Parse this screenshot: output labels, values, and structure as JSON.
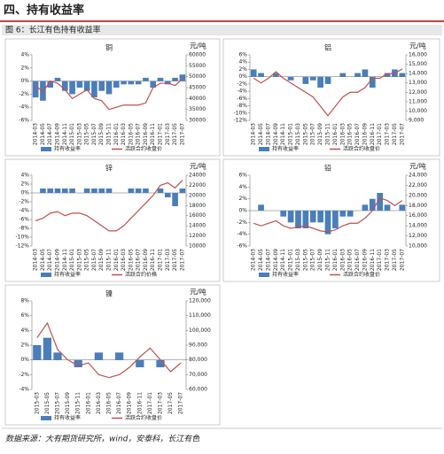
{
  "header": {
    "title": "四、持有收益率",
    "caption": "图 6：长江有色持有收益率",
    "source": "数据来源：大有期货研究所，wind，安泰科，长江有色"
  },
  "chart_data": [
    {
      "type": "combo",
      "title": "铜",
      "y2_label": "元/吨",
      "categories": [
        "2014-03",
        "2014-05",
        "2014-07",
        "2014-09",
        "2014-11",
        "2015-01",
        "2015-03",
        "2015-05",
        "2015-07",
        "2015-09",
        "2015-11",
        "2016-01",
        "2016-03",
        "2016-05",
        "2016-07",
        "2016-09",
        "2016-11",
        "2017-01",
        "2017-03",
        "2017-05",
        "2017-07"
      ],
      "series": [
        {
          "name": "持有收益率",
          "color": "#4a7ebb",
          "kind": "bar",
          "values": [
            -2.5,
            -3,
            -1,
            0.5,
            -1.5,
            -2,
            -1,
            -1.5,
            -2.5,
            -1.5,
            -2,
            -1,
            -0.5,
            -0.5,
            -0.5,
            0.5,
            -1,
            0.5,
            -0.5,
            0.5,
            1
          ]
        },
        {
          "name": "活跃合约收盘价",
          "color": "#c0504d",
          "kind": "line",
          "axis": "y2",
          "values": [
            46000,
            43000,
            48000,
            47000,
            44000,
            40000,
            42000,
            44000,
            40000,
            39000,
            35000,
            36000,
            37000,
            37000,
            37000,
            38000,
            45000,
            47000,
            47000,
            46000,
            49000
          ]
        }
      ],
      "ylim": [
        -6,
        4
      ],
      "yticks": [
        {
          "value": 4,
          "label": "4%"
        },
        {
          "value": 2,
          "label": "2%"
        },
        {
          "value": 0,
          "label": "0%"
        },
        {
          "value": -2,
          "label": "-2%"
        },
        {
          "value": -4,
          "label": "-4%"
        },
        {
          "value": -6,
          "label": "-6%"
        }
      ],
      "y2lim": [
        30000,
        60000
      ],
      "y2ticks": [
        60000,
        55000,
        50000,
        45000,
        40000,
        35000,
        30000
      ]
    },
    {
      "type": "combo",
      "title": "铝",
      "y2_label": "元/吨",
      "categories": [
        "2014-03",
        "2014-05",
        "2014-07",
        "2014-09",
        "2014-11",
        "2015-01",
        "2015-03",
        "2015-05",
        "2015-07",
        "2015-09",
        "2015-11",
        "2016-01",
        "2016-03",
        "2016-05",
        "2016-07",
        "2016-09",
        "2016-11",
        "2017-01",
        "2017-03",
        "2017-05",
        "2017-07"
      ],
      "series": [
        {
          "name": "持有收益率",
          "color": "#4a7ebb",
          "kind": "bar",
          "values": [
            2,
            1,
            0,
            1,
            0,
            -1,
            0,
            -2,
            -1,
            -3,
            -2,
            0,
            1,
            0,
            1,
            2,
            -3,
            0,
            1,
            2,
            1
          ]
        },
        {
          "name": "活跃合约收盘价",
          "color": "#c0504d",
          "kind": "line",
          "axis": "y2",
          "values": [
            13500,
            13000,
            13500,
            14200,
            13500,
            13000,
            12500,
            12000,
            11500,
            10500,
            9500,
            10500,
            11500,
            12000,
            12000,
            12500,
            13500,
            13500,
            14000,
            14000,
            14500
          ]
        }
      ],
      "ylim": [
        -12,
        6
      ],
      "yticks": [
        {
          "value": 6,
          "label": "6%"
        },
        {
          "value": 4,
          "label": "4%"
        },
        {
          "value": 2,
          "label": "2%"
        },
        {
          "value": 0,
          "label": "0%"
        },
        {
          "value": -2,
          "label": "-2%"
        },
        {
          "value": -4,
          "label": "-4%"
        },
        {
          "value": -6,
          "label": "-6%"
        },
        {
          "value": -8,
          "label": "-8%"
        },
        {
          "value": -10,
          "label": "-10%"
        },
        {
          "value": -12,
          "label": "-12%"
        }
      ],
      "y2lim": [
        9000,
        16000
      ],
      "y2ticks": [
        {
          "value": 16000,
          "label": "16,000"
        },
        {
          "value": 15000,
          "label": "15,000"
        },
        {
          "value": 14000,
          "label": "14,000"
        },
        {
          "value": 13000,
          "label": "13,000"
        },
        {
          "value": 12000,
          "label": "12,000"
        },
        {
          "value": 11000,
          "label": "11,000"
        },
        {
          "value": 10000,
          "label": "10,000"
        },
        {
          "value": 9000,
          "label": "9,000"
        }
      ]
    },
    {
      "type": "combo",
      "title": "锌",
      "y2_label": "元/吨",
      "categories": [
        "2014-03",
        "2014-05",
        "2014-07",
        "2014-09",
        "2014-11",
        "2015-01",
        "2015-03",
        "2015-05",
        "2015-07",
        "2015-09",
        "2015-11",
        "2016-01",
        "2016-03",
        "2016-05",
        "2016-07",
        "2016-09",
        "2016-11",
        "2017-01",
        "2017-03",
        "2017-05",
        "2017-07"
      ],
      "series": [
        {
          "name": "持有收益率",
          "color": "#4a7ebb",
          "kind": "bar",
          "values": [
            0,
            1,
            1,
            1,
            1,
            1,
            0,
            1,
            1,
            1,
            1,
            0,
            0,
            1,
            1,
            1,
            0,
            1,
            -1,
            -3,
            1
          ]
        },
        {
          "name": "活跃合约价格",
          "color": "#c0504d",
          "kind": "line",
          "axis": "y2",
          "values": [
            15000,
            15500,
            16500,
            16800,
            16000,
            16500,
            16500,
            16000,
            15000,
            14000,
            13000,
            13000,
            14000,
            15500,
            17000,
            18500,
            20000,
            22000,
            22500,
            21500,
            23000
          ]
        }
      ],
      "ylim": [
        -12,
        4
      ],
      "yticks": [
        {
          "value": 4,
          "label": "4%"
        },
        {
          "value": 2,
          "label": "2%"
        },
        {
          "value": 0,
          "label": "0%"
        },
        {
          "value": -2,
          "label": "-2%"
        },
        {
          "value": -4,
          "label": "-4%"
        },
        {
          "value": -6,
          "label": "-6%"
        },
        {
          "value": -8,
          "label": "-8%"
        },
        {
          "value": -10,
          "label": "-10%"
        },
        {
          "value": -12,
          "label": "-12%"
        }
      ],
      "y2lim": [
        10000,
        24000
      ],
      "y2ticks": [
        24000,
        22000,
        20000,
        18000,
        16000,
        14000,
        12000,
        10000
      ]
    },
    {
      "type": "combo",
      "title": "铅",
      "y2_label": "元/吨",
      "categories": [
        "2014-03",
        "2014-05",
        "2014-07",
        "2014-09",
        "2014-11",
        "2015-01",
        "2015-03",
        "2015-05",
        "2015-07",
        "2015-09",
        "2015-11",
        "2016-01",
        "2016-03",
        "2016-05",
        "2016-07",
        "2016-09",
        "2016-11",
        "2017-01",
        "2017-03",
        "2017-05",
        "2017-07"
      ],
      "series": [
        {
          "name": "持有收益率",
          "color": "#4a7ebb",
          "kind": "bar",
          "values": [
            0,
            1,
            0,
            0,
            -1,
            -2,
            -3,
            -3,
            -2,
            -2,
            -4,
            -3,
            -1,
            -1,
            0,
            1,
            2,
            3,
            1,
            0,
            1
          ]
        },
        {
          "name": "活跃合约收盘价",
          "color": "#c0504d",
          "kind": "line",
          "axis": "y2",
          "values": [
            14500,
            14000,
            14500,
            15000,
            14000,
            13500,
            13800,
            14000,
            13500,
            13000,
            12800,
            13200,
            14000,
            14500,
            14500,
            15500,
            17000,
            19500,
            19000,
            18000,
            19000
          ]
        }
      ],
      "ylim": [
        -6,
        6
      ],
      "yticks": [
        {
          "value": 6,
          "label": "6%"
        },
        {
          "value": 4,
          "label": "4%"
        },
        {
          "value": 2,
          "label": "2%"
        },
        {
          "value": 0,
          "label": "0%"
        },
        {
          "value": -2,
          "label": "-2%"
        },
        {
          "value": -4,
          "label": "-4%"
        },
        {
          "value": -6,
          "label": "-6%"
        }
      ],
      "y2lim": [
        10000,
        24000
      ],
      "y2ticks": [
        {
          "value": 24000,
          "label": "24,000"
        },
        {
          "value": 22000,
          "label": "22,000"
        },
        {
          "value": 20000,
          "label": "20,000"
        },
        {
          "value": 18000,
          "label": "18,000"
        },
        {
          "value": 16000,
          "label": "16,000"
        },
        {
          "value": 14000,
          "label": "14,000"
        },
        {
          "value": 12000,
          "label": "12,000"
        },
        {
          "value": 10000,
          "label": "10,000"
        }
      ]
    },
    {
      "type": "combo",
      "title": "镍",
      "y2_label": "元/吨",
      "categories": [
        "2015-03",
        "2015-05",
        "2015-07",
        "2015-09",
        "2015-11",
        "2016-01",
        "2016-03",
        "2016-05",
        "2016-07",
        "2016-09",
        "2016-11",
        "2017-01",
        "2017-03",
        "2017-05",
        "2017-07"
      ],
      "series": [
        {
          "name": "持有收益率",
          "color": "#4a7ebb",
          "kind": "bar",
          "values": [
            2,
            3,
            1,
            0,
            -1,
            0,
            1,
            0,
            1,
            0,
            -1,
            0,
            -1,
            0,
            0
          ]
        },
        {
          "name": "活跃合约收盘价",
          "color": "#c0504d",
          "kind": "line",
          "axis": "y2",
          "values": [
            95000,
            105000,
            87000,
            80000,
            76000,
            78000,
            70000,
            68000,
            70000,
            75000,
            82000,
            88000,
            80000,
            72000,
            78000
          ]
        }
      ],
      "ylim": [
        -4,
        8
      ],
      "yticks": [
        {
          "value": 8,
          "label": "8%"
        },
        {
          "value": 6,
          "label": "6%"
        },
        {
          "value": 4,
          "label": "4%"
        },
        {
          "value": 2,
          "label": "2%"
        },
        {
          "value": 0,
          "label": "0%"
        },
        {
          "value": -2,
          "label": "-2%"
        },
        {
          "value": -4,
          "label": "-4%"
        }
      ],
      "y2lim": [
        60000,
        120000
      ],
      "y2ticks": [
        {
          "value": 120000,
          "label": "120,000"
        },
        {
          "value": 110000,
          "label": "110,000"
        },
        {
          "value": 100000,
          "label": "100,000"
        },
        {
          "value": 90000,
          "label": "90,000"
        },
        {
          "value": 80000,
          "label": "80,000"
        },
        {
          "value": 70000,
          "label": "70,000"
        },
        {
          "value": 60000,
          "label": "60,000"
        }
      ]
    }
  ]
}
